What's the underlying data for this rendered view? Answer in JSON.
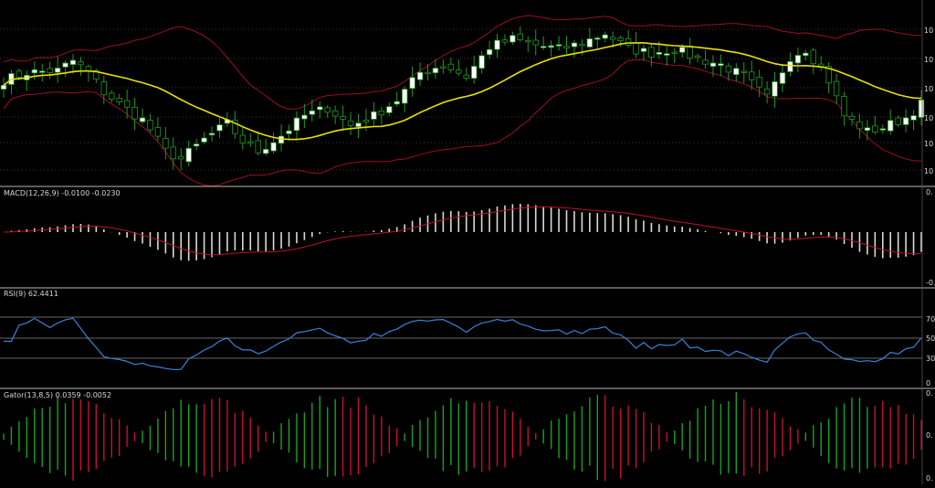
{
  "colors": {
    "background": "#000000",
    "grid": "#3a3a3a",
    "separator": "#b8b8b8",
    "bull_body": "#ffffff",
    "bear_body": "#000000",
    "wick": "#1f9a1f",
    "sma": "#e8e000",
    "bollinger": "#9b0f24",
    "macd_hist": "#d9d9d9",
    "macd_signal": "#c0102c",
    "rsi_line": "#3b82d6",
    "rsi_guide": "#8a8a8a",
    "gator_up": "#19a319",
    "gator_down": "#c8102e",
    "label_text": "#d8d8d8"
  },
  "panels": {
    "price": {
      "axis_labels": [
        "10",
        "10",
        "10",
        "10",
        "10",
        "10"
      ]
    },
    "macd": {
      "label": "MACD(12,26,9) -0.0100 -0.0230",
      "axis_labels": [
        "0.",
        "-0."
      ]
    },
    "rsi": {
      "label": "RSI(9) 62.4411",
      "axis_labels": [
        "70",
        "50",
        "30",
        "0"
      ]
    },
    "gator": {
      "label": "Gator(13,8,5) 0.0359 -0.0052",
      "axis_labels": [
        "0.",
        "0.",
        "0."
      ]
    }
  },
  "chart_data": {
    "type": "candlestick",
    "bars": 120,
    "price_anchors": [
      [
        0,
        58
      ],
      [
        3,
        62
      ],
      [
        7,
        63
      ],
      [
        9,
        68
      ],
      [
        11,
        62
      ],
      [
        13,
        52
      ],
      [
        15,
        46
      ],
      [
        18,
        38
      ],
      [
        19,
        33
      ],
      [
        21,
        22
      ],
      [
        23,
        18
      ],
      [
        26,
        28
      ],
      [
        29,
        36
      ],
      [
        31,
        27
      ],
      [
        33,
        22
      ],
      [
        36,
        30
      ],
      [
        39,
        40
      ],
      [
        42,
        44
      ],
      [
        45,
        35
      ],
      [
        48,
        40
      ],
      [
        51,
        48
      ],
      [
        54,
        62
      ],
      [
        57,
        66
      ],
      [
        60,
        60
      ],
      [
        63,
        75
      ],
      [
        66,
        79
      ],
      [
        69,
        76
      ],
      [
        72,
        74
      ],
      [
        75,
        77
      ],
      [
        78,
        82
      ],
      [
        81,
        74
      ],
      [
        84,
        72
      ],
      [
        87,
        74
      ],
      [
        90,
        69
      ],
      [
        93,
        66
      ],
      [
        96,
        60
      ],
      [
        99,
        49
      ],
      [
        102,
        70
      ],
      [
        104,
        74
      ],
      [
        106,
        64
      ],
      [
        107,
        58
      ],
      [
        109,
        40
      ],
      [
        112,
        32
      ],
      [
        114,
        34
      ],
      [
        117,
        39
      ],
      [
        119,
        46
      ]
    ],
    "sma_period": 20,
    "bollinger_width": 2,
    "series": [
      {
        "name": "MACD(12,26,9)",
        "panel": "macd",
        "values": [
          -0.01,
          -0.023
        ]
      },
      {
        "name": "RSI(9)",
        "panel": "rsi",
        "values": [
          62.4411
        ],
        "levels": [
          70,
          50,
          30
        ]
      },
      {
        "name": "Gator(13,8,5)",
        "panel": "gator",
        "values": [
          0.0359,
          -0.0052
        ]
      }
    ]
  }
}
